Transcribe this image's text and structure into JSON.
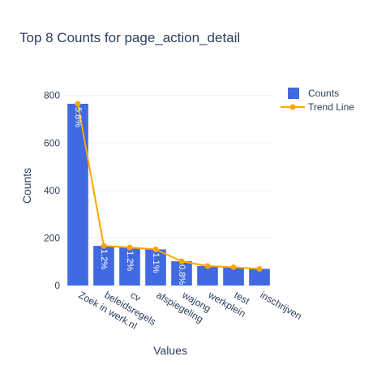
{
  "chart_data": {
    "type": "bar",
    "title": "Top 8 Counts for page_action_detail",
    "xlabel": "Values",
    "ylabel": "Counts",
    "categories": [
      "Zoek in werk.nl",
      "beleidsregels",
      "cv",
      "afspiegeling",
      "wajong",
      "werkplein",
      "test",
      "inschrijven"
    ],
    "series": [
      {
        "name": "Counts",
        "kind": "bar",
        "color": "#4169e1",
        "values": [
          765,
          167,
          160,
          152,
          102,
          82,
          77,
          70
        ],
        "labels": [
          "5.8%",
          "1.2%",
          "1.2%",
          "1.1%",
          "0.8%",
          "",
          "",
          ""
        ]
      },
      {
        "name": "Trend Line",
        "kind": "line",
        "color": "#ffa500",
        "values": [
          765,
          167,
          160,
          152,
          102,
          82,
          77,
          70
        ]
      }
    ],
    "ylim": [
      0,
      840
    ],
    "yticks": [
      0,
      200,
      400,
      600,
      800
    ],
    "grid": true,
    "legend": "top-right"
  }
}
